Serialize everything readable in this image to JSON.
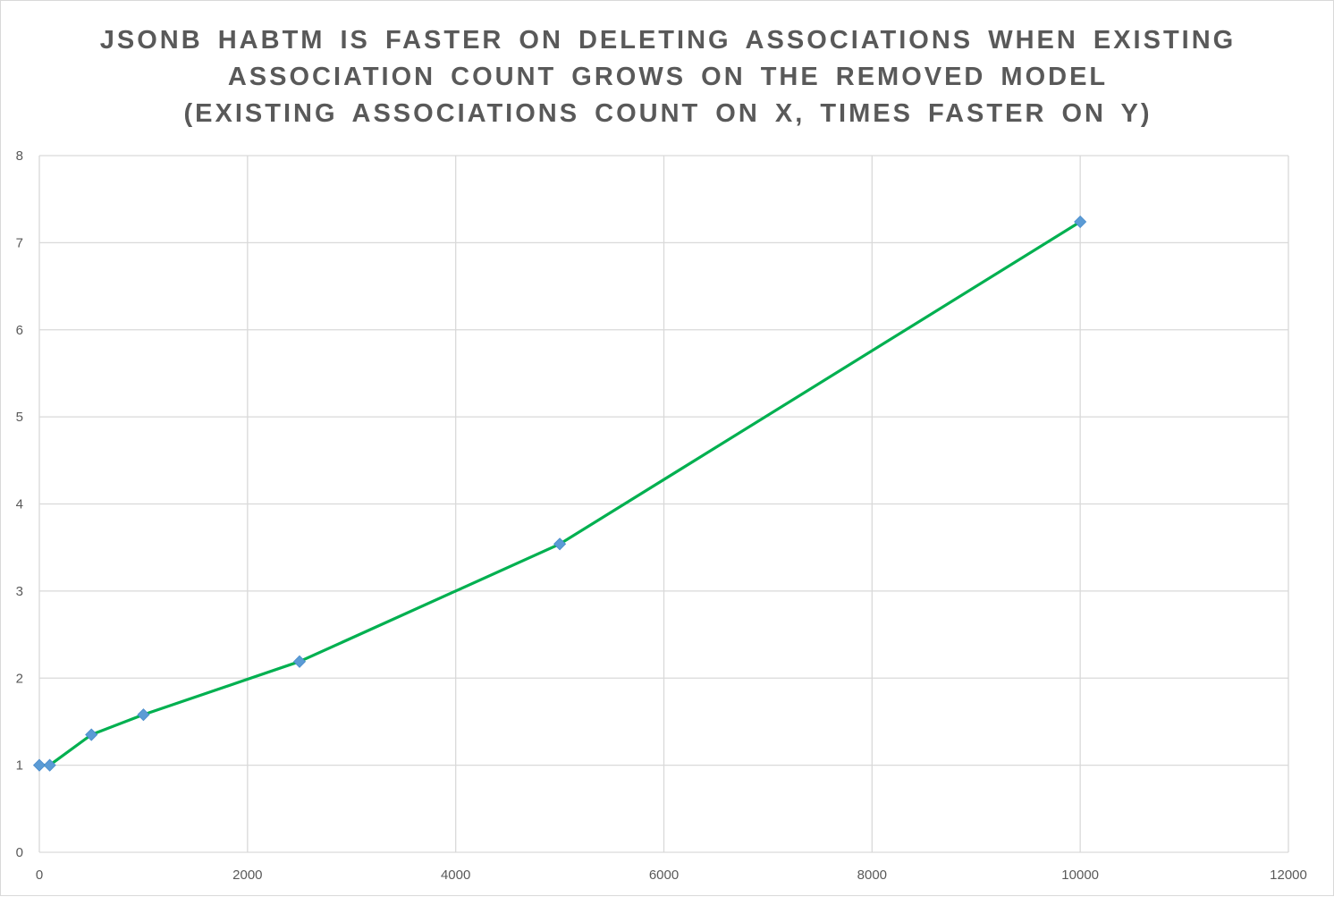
{
  "chart_data": {
    "type": "line",
    "title_lines": [
      "JSONB HABTM IS FASTER ON DELETING ASSOCIATIONS WHEN EXISTING",
      "ASSOCIATION COUNT GROWS ON THE REMOVED MODEL",
      "(EXISTING ASSOCIATIONS COUNT ON X, TIMES FASTER ON Y)"
    ],
    "xlabel": "",
    "ylabel": "",
    "xlim": [
      0,
      12000
    ],
    "ylim": [
      0,
      8
    ],
    "x_ticks": [
      0,
      2000,
      4000,
      6000,
      8000,
      10000,
      12000
    ],
    "y_ticks": [
      0,
      1,
      2,
      3,
      4,
      5,
      6,
      7,
      8
    ],
    "grid": true,
    "legend": "none",
    "series": [
      {
        "x": [
          0,
          100,
          500,
          1000,
          2500,
          5000,
          10000
        ],
        "y": [
          1.0,
          1.0,
          1.35,
          1.58,
          2.19,
          3.54,
          7.24
        ],
        "line_color": "#00b050",
        "marker_color": "#5b9bd5",
        "marker": "diamond"
      }
    ]
  }
}
